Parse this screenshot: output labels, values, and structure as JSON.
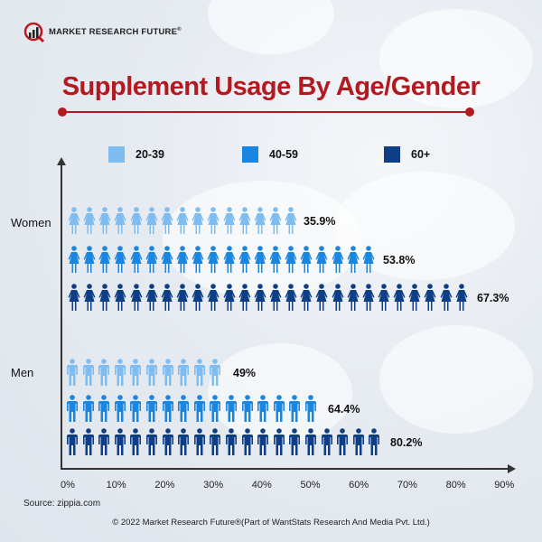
{
  "brand": {
    "name": "MARKET RESEARCH FUTURE",
    "registered": "®"
  },
  "source": "Source: zippia.com",
  "footer": "© 2022 Market Research Future®(Part of WantStats Research And Media Pvt. Ltd.)",
  "chart_data": {
    "type": "bar",
    "title": "Supplement Usage By Age/Gender",
    "categories": [
      "Women",
      "Men"
    ],
    "series": [
      {
        "name": "20-39",
        "color": "#7fbdf0",
        "values": [
          35.9,
          49
        ],
        "labels": [
          "35.9%",
          "49%"
        ],
        "icons": [
          15,
          10
        ]
      },
      {
        "name": "40-59",
        "color": "#1a86e0",
        "values": [
          53.8,
          64.4
        ],
        "labels": [
          "53.8%",
          "64.4%"
        ],
        "icons": [
          20,
          16
        ]
      },
      {
        "name": "60+",
        "color": "#0e3f86",
        "values": [
          67.3,
          80.2
        ],
        "labels": [
          "67.3%",
          "80.2%"
        ],
        "icons": [
          26,
          20
        ]
      }
    ],
    "xlim": [
      0,
      90
    ],
    "xticks": [
      "0%",
      "10%",
      "20%",
      "30%",
      "40%",
      "50%",
      "60%",
      "70%",
      "80%",
      "90%"
    ],
    "orientation": "horizontal",
    "legend_position": "top",
    "grid": false,
    "xlabel": "",
    "ylabel": ""
  }
}
